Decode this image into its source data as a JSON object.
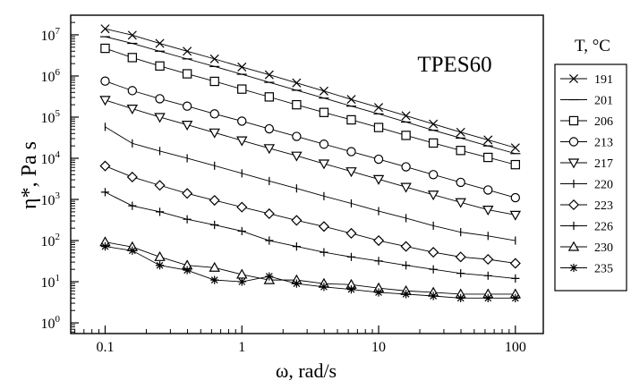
{
  "chart_data": {
    "type": "line",
    "title": "",
    "annotation": "TPES60",
    "xlabel": "ω, rad/s",
    "ylabel_main": "η*, Pa s",
    "x_scale": "log",
    "y_scale": "log",
    "xlim": [
      0.056,
      160
    ],
    "ylim": [
      0.55,
      30000000
    ],
    "x_ticks": [
      0.1,
      1,
      10,
      100
    ],
    "x_tick_labels": [
      "0.1",
      "1",
      "10",
      "100"
    ],
    "y_ticks": [
      1,
      10,
      100,
      1000,
      10000,
      100000,
      1000000,
      10000000
    ],
    "y_tick_base": "10",
    "y_tick_exponents": [
      "0",
      "1",
      "2",
      "3",
      "4",
      "5",
      "6",
      "7"
    ],
    "grid": false,
    "legend_title": "T, °C",
    "legend_position": "right-outside",
    "x": [
      0.1,
      0.158,
      0.251,
      0.398,
      0.631,
      1,
      1.585,
      2.512,
      3.981,
      6.31,
      10,
      15.85,
      25.12,
      39.81,
      63.1,
      100
    ],
    "series": [
      {
        "name": "191",
        "marker": "x-cross",
        "values": [
          14000000,
          9800000,
          6200000,
          4000000,
          2600000,
          1650000,
          1070000,
          680000,
          430000,
          270000,
          172000,
          108000,
          68000,
          43000,
          28000,
          18000
        ]
      },
      {
        "name": "201",
        "marker": "dash",
        "values": [
          9000000,
          6200000,
          4000000,
          2600000,
          1700000,
          1100000,
          700000,
          450000,
          290000,
          185000,
          120000,
          76000,
          48000,
          31000,
          20000,
          13000
        ]
      },
      {
        "name": "206",
        "marker": "square",
        "values": [
          4700000,
          2800000,
          1750000,
          1130000,
          740000,
          480000,
          310000,
          200000,
          130000,
          86000,
          56000,
          36000,
          23500,
          15500,
          10500,
          7000
        ]
      },
      {
        "name": "213",
        "marker": "circle",
        "values": [
          750000,
          440000,
          280000,
          185000,
          120000,
          80000,
          52000,
          34000,
          22000,
          14500,
          9500,
          6200,
          4000,
          2600,
          1700,
          1100
        ]
      },
      {
        "name": "217",
        "marker": "triangle-down",
        "values": [
          260000,
          160000,
          100000,
          65000,
          42000,
          27000,
          17500,
          11500,
          7400,
          4800,
          3100,
          2000,
          1300,
          850,
          560,
          420
        ]
      },
      {
        "name": "220",
        "marker": "vbar",
        "values": [
          58000,
          23000,
          15000,
          10000,
          6600,
          4300,
          2800,
          1850,
          1200,
          800,
          520,
          350,
          230,
          160,
          130,
          100
        ]
      },
      {
        "name": "223",
        "marker": "diamond",
        "values": [
          6500,
          3500,
          2200,
          1400,
          950,
          650,
          450,
          310,
          220,
          150,
          100,
          72,
          52,
          40,
          35,
          28
        ]
      },
      {
        "name": "226",
        "marker": "plus",
        "values": [
          1500,
          700,
          500,
          330,
          240,
          170,
          100,
          72,
          52,
          40,
          32,
          25,
          20,
          16,
          14,
          12
        ]
      },
      {
        "name": "230",
        "marker": "triangle-up",
        "values": [
          92,
          70,
          40,
          25,
          22,
          15,
          11,
          11,
          9,
          8.5,
          7,
          6,
          5.5,
          5,
          5,
          5
        ]
      },
      {
        "name": "235",
        "marker": "asterisk",
        "values": [
          72,
          57,
          25,
          19,
          11,
          10,
          13.5,
          9,
          7.5,
          6.5,
          5.5,
          5,
          4.5,
          4,
          4,
          4
        ]
      }
    ]
  }
}
